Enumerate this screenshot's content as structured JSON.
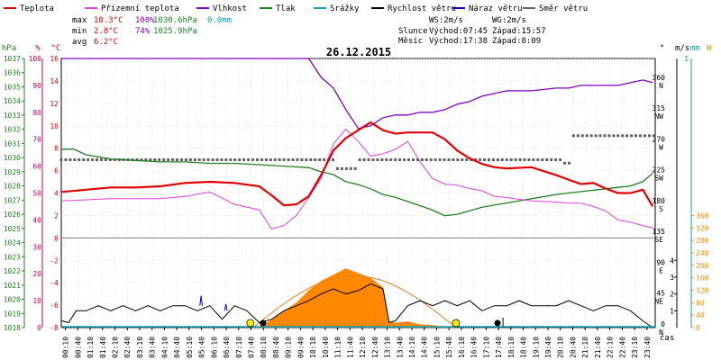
{
  "chart_data": {
    "type": "line",
    "title": "26.12.2015",
    "legend": {
      "placement": "top",
      "items": [
        {
          "label": "Teplota",
          "color": "#e00000"
        },
        {
          "label": "Přízemní teplota",
          "color": "#e040e0"
        },
        {
          "label": "Vlhkost",
          "color": "#8000c0"
        },
        {
          "label": "Tlak",
          "color": "#208020"
        },
        {
          "label": "Srážky",
          "color": "#00a0c0"
        },
        {
          "label": "Rychlost větru",
          "color": "#000000"
        },
        {
          "label": "Náraz větru",
          "color": "#0000c0"
        },
        {
          "label": "Směr větru",
          "color": "#606060"
        }
      ]
    },
    "stats": {
      "max_label": "max",
      "max_temp": "10.3°C",
      "max_hum": "100%",
      "max_press": "1030.6hPa",
      "max_rain": "0.0mm",
      "min_label": "min",
      "min_temp": "2.8°C",
      "min_hum": "74%",
      "min_press": "1025.9hPa",
      "avg_label": "avg",
      "avg_temp": "6.2°C"
    },
    "info": {
      "ws": "WS:2m/s",
      "wg": "WG:2m/s",
      "sun": "Slunce",
      "sunrise": "Východ:07:45",
      "sunset": "Západ:15:57",
      "moon": "Měsíc",
      "moonrise": "Východ:17:38",
      "moonset": "Západ:8:09"
    },
    "left_axes": {
      "hpa_title": "hPa",
      "hpa_ticks": [
        "1037",
        "1036",
        "1035",
        "1034",
        "1033",
        "1032",
        "1031",
        "1030",
        "1029",
        "1028",
        "1027",
        "1026",
        "1025",
        "1024",
        "1023",
        "1022",
        "1021",
        "1020",
        "1019",
        "1018"
      ],
      "pct_title": "%",
      "pct_ticks": [
        "100",
        "90",
        "80",
        "70",
        "60",
        "50",
        "40",
        "30",
        "20",
        "10",
        "0"
      ],
      "temp_title": "°C",
      "temp_ticks": [
        "16",
        "14",
        "12",
        "10",
        "8",
        "6",
        "4",
        "2",
        "0",
        "-2",
        "-4",
        "-6",
        "-8"
      ],
      "temp_range": [
        -8,
        16
      ]
    },
    "right_axes": {
      "dir_title": "°",
      "dir_ticks": [
        "360\nN",
        "315\nNW",
        "270\nW",
        "225\nSW",
        "180\nS",
        "135\nSE",
        "90\nE",
        "45\nNE",
        "0\nN"
      ],
      "ms_title": "m/s",
      "ms_ticks": [
        "4",
        "3",
        "2",
        "1"
      ],
      "mm_title": "mm",
      "mm_ticks": [
        "1"
      ],
      "w_title": "W",
      "w_ticks": [
        "360",
        "320",
        "280",
        "240",
        "200",
        "160",
        "120",
        "80",
        "40",
        "0"
      ],
      "time_label": "čas"
    },
    "x_ticks": [
      "00:10",
      "00:40",
      "01:10",
      "01:40",
      "02:10",
      "02:40",
      "03:10",
      "03:40",
      "04:10",
      "04:40",
      "05:10",
      "05:40",
      "06:10",
      "06:40",
      "07:10",
      "07:40",
      "08:10",
      "08:40",
      "09:10",
      "09:40",
      "10:10",
      "10:40",
      "11:10",
      "11:40",
      "12:10",
      "12:40",
      "13:10",
      "13:40",
      "14:10",
      "14:40",
      "15:10",
      "15:40",
      "16:10",
      "16:40",
      "17:10",
      "17:40",
      "18:10",
      "18:40",
      "19:10",
      "19:40",
      "20:10",
      "20:40",
      "21:10",
      "21:40",
      "22:10",
      "22:40",
      "23:10",
      "23:40"
    ],
    "series": [
      {
        "name": "Teplota",
        "color": "#e00000",
        "unit": "°C",
        "x": [
          0,
          1,
          2,
          3,
          4,
          5,
          6,
          7,
          8,
          8.5,
          9,
          9.5,
          10,
          10.5,
          11,
          11.5,
          12,
          12.5,
          13,
          13.5,
          14,
          14.5,
          15,
          15.5,
          16,
          16.5,
          17,
          17.5,
          18,
          19,
          20,
          20.5,
          21,
          21.5,
          22,
          22.5,
          23,
          23.5,
          23.9
        ],
        "y": [
          4.1,
          4.3,
          4.5,
          4.5,
          4.6,
          4.9,
          5.0,
          4.9,
          4.6,
          3.8,
          2.9,
          3.0,
          3.7,
          5.6,
          7.8,
          8.9,
          9.6,
          10.3,
          9.6,
          9.3,
          9.4,
          9.4,
          9.4,
          8.8,
          7.8,
          7.1,
          6.6,
          6.3,
          6.2,
          6.3,
          5.6,
          5.2,
          4.8,
          4.9,
          4.4,
          4.0,
          4.0,
          4.3,
          2.8
        ]
      },
      {
        "name": "Přízemní teplota",
        "color": "#e040e0",
        "unit": "°C",
        "x": [
          0,
          1,
          2,
          3,
          4,
          5,
          6,
          7,
          8,
          8.5,
          9,
          9.5,
          10,
          10.5,
          11,
          11.5,
          12,
          12.5,
          13,
          13.5,
          14,
          14.5,
          15,
          15.5,
          16,
          16.5,
          17,
          17.5,
          18,
          19,
          20,
          20.5,
          21,
          21.5,
          22,
          22.5,
          23,
          23.5,
          23.9
        ],
        "y": [
          3.3,
          3.4,
          3.5,
          3.5,
          3.5,
          3.7,
          4.1,
          3.0,
          2.5,
          0.8,
          1.1,
          2.0,
          3.6,
          5.3,
          8.4,
          9.7,
          8.6,
          7.3,
          7.5,
          7.9,
          8.6,
          6.8,
          5.3,
          4.8,
          4.7,
          4.4,
          4.2,
          3.7,
          3.6,
          3.3,
          3.2,
          3.1,
          3.1,
          2.8,
          2.4,
          1.6,
          1.4,
          1.1,
          0.9
        ]
      },
      {
        "name": "Vlhkost",
        "color": "#8000c0",
        "unit": "%",
        "x": [
          0,
          2,
          4,
          6,
          8,
          9,
          10,
          10.5,
          11,
          11.5,
          12,
          12.5,
          13,
          13.5,
          14,
          14.5,
          15,
          15.5,
          16,
          16.5,
          17,
          17.5,
          18,
          18.5,
          19,
          20,
          20.5,
          21,
          21.5,
          22,
          22.5,
          23,
          23.5,
          23.9
        ],
        "y": [
          100,
          100,
          100,
          100,
          100,
          100,
          100,
          93,
          89,
          81,
          74,
          75,
          78,
          79,
          79,
          80,
          80,
          81,
          83,
          84,
          86,
          87,
          88,
          88,
          88,
          89,
          89,
          90,
          90,
          90,
          90,
          91,
          92,
          91
        ]
      },
      {
        "name": "Tlak",
        "color": "#208020",
        "unit": "hPa",
        "x": [
          0,
          0.5,
          1,
          2,
          3,
          4,
          5,
          6,
          7,
          8,
          9,
          10,
          10.5,
          11,
          11.5,
          12,
          12.5,
          13,
          13.5,
          14,
          15,
          15.5,
          16,
          17,
          18,
          19,
          20,
          21,
          22,
          22.5,
          23,
          23.5,
          23.9
        ],
        "y": [
          1030.6,
          1030.6,
          1030.2,
          1029.9,
          1029.8,
          1029.7,
          1029.7,
          1029.6,
          1029.6,
          1029.5,
          1029.4,
          1029.3,
          1029.0,
          1028.8,
          1028.3,
          1028.1,
          1027.8,
          1027.4,
          1027.2,
          1026.9,
          1026.3,
          1025.9,
          1026.0,
          1026.5,
          1026.8,
          1027.1,
          1027.4,
          1027.6,
          1027.8,
          1027.9,
          1028.0,
          1028.3,
          1028.9
        ]
      },
      {
        "name": "Rychlost větru",
        "color": "#000000",
        "unit": "m/s",
        "x": [
          0,
          0.3,
          0.6,
          1,
          1.5,
          2,
          2.5,
          3,
          3.5,
          4,
          4.5,
          5,
          5.5,
          6,
          6.5,
          7,
          7.5,
          8,
          8.5,
          9,
          9.5,
          10,
          10.5,
          11,
          11.5,
          12,
          12.5,
          13,
          13.25,
          13.5,
          14,
          14.5,
          15,
          15.5,
          16,
          16.5,
          17,
          17.5,
          18,
          18.5,
          19,
          19.5,
          20,
          20.5,
          21,
          21.5,
          22,
          22.5,
          23,
          23.5,
          23.9
        ],
        "y": [
          0.4,
          0.3,
          1.0,
          1.0,
          1.3,
          1.0,
          1.3,
          1.0,
          1.3,
          1.0,
          1.3,
          1.3,
          1.0,
          1.3,
          0.5,
          1.3,
          1.0,
          0.3,
          0.5,
          1.0,
          1.3,
          1.6,
          2.0,
          2.3,
          2.0,
          2.2,
          2.6,
          2.3,
          0.3,
          0.4,
          1.3,
          1.6,
          1.3,
          1.6,
          1.3,
          1.6,
          1.0,
          1.3,
          1.3,
          1.6,
          1.3,
          1.3,
          1.3,
          1.6,
          1.3,
          1.0,
          1.3,
          1.3,
          1.0,
          0.4,
          0.0
        ]
      },
      {
        "name": "Náraz větru",
        "color": "#0000c0",
        "unit": "m/s",
        "x": [
          5.6,
          5.65,
          5.7,
          6.6,
          6.65,
          6.7
        ],
        "y": [
          1.3,
          1.9,
          1.3,
          1.0,
          1.4,
          1.0
        ]
      },
      {
        "name": "Směr větru",
        "color": "#606060",
        "unit": "°",
        "x": [
          0,
          1,
          2,
          3,
          4,
          5,
          6,
          7,
          8,
          9,
          10,
          11,
          11.5,
          12,
          12.5,
          13,
          13.5,
          14,
          15,
          16,
          17,
          18,
          18.5,
          19,
          20,
          20.3,
          20.6,
          21,
          22,
          23,
          23.9
        ],
        "y": [
          245,
          245,
          245,
          245,
          245,
          245,
          245,
          245,
          245,
          245,
          245,
          245,
          232,
          232,
          245,
          245,
          245,
          245,
          245,
          245,
          245,
          245,
          245,
          245,
          245,
          245,
          240,
          280,
          280,
          280,
          280
        ]
      },
      {
        "name": "W",
        "color": "#ff8800",
        "unit": "W",
        "x": [
          7.75,
          8,
          8.5,
          9,
          9.5,
          10,
          10.5,
          11,
          11.5,
          12,
          12.5,
          13,
          13.25,
          13.5,
          14,
          14.5,
          15,
          15.5,
          15.95
        ],
        "y": [
          0,
          5,
          25,
          55,
          80,
          120,
          150,
          170,
          190,
          175,
          160,
          130,
          20,
          15,
          20,
          10,
          8,
          3,
          0
        ]
      }
    ],
    "sun_curve": {
      "color": "#e08020",
      "start": 7.75,
      "end": 15.95,
      "peak_w": 166
    },
    "markers": [
      "sunrise",
      "sunset",
      "moonrise",
      "moonset"
    ]
  }
}
